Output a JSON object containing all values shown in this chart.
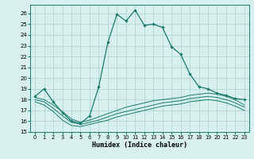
{
  "xlabel": "Humidex (Indice chaleur)",
  "background_color": "#d8f0ed",
  "grid_color": "#b0d8d4",
  "line_color": "#1a7a6e",
  "xlim": [
    -0.5,
    23.5
  ],
  "ylim": [
    15,
    26.8
  ],
  "yticks": [
    15,
    16,
    17,
    18,
    19,
    20,
    21,
    22,
    23,
    24,
    25,
    26
  ],
  "xticks": [
    0,
    1,
    2,
    3,
    4,
    5,
    6,
    7,
    8,
    9,
    10,
    11,
    12,
    13,
    14,
    15,
    16,
    17,
    18,
    19,
    20,
    21,
    22,
    23
  ],
  "main_x": [
    0,
    1,
    2,
    3,
    4,
    5,
    6,
    7,
    8,
    9,
    10,
    11,
    12,
    13,
    14,
    15,
    16,
    17,
    18,
    19,
    20,
    21,
    22,
    23
  ],
  "main_y": [
    18.3,
    19.0,
    17.8,
    16.8,
    16.0,
    15.8,
    16.5,
    19.2,
    23.3,
    25.9,
    25.3,
    26.3,
    24.9,
    25.0,
    24.7,
    22.9,
    22.2,
    20.4,
    19.2,
    19.0,
    18.6,
    18.4,
    18.1,
    18.0
  ],
  "line2_x": [
    0,
    1,
    2,
    3,
    4,
    5,
    6,
    7,
    8,
    9,
    10,
    11,
    12,
    13,
    14,
    15,
    16,
    17,
    18,
    19,
    20,
    21,
    22,
    23
  ],
  "line2_y": [
    18.2,
    18.0,
    17.5,
    16.9,
    16.2,
    15.9,
    16.1,
    16.4,
    16.7,
    17.0,
    17.3,
    17.5,
    17.7,
    17.9,
    18.0,
    18.1,
    18.2,
    18.4,
    18.5,
    18.6,
    18.5,
    18.3,
    18.0,
    17.5
  ],
  "line3_x": [
    0,
    1,
    2,
    3,
    4,
    5,
    6,
    7,
    8,
    9,
    10,
    11,
    12,
    13,
    14,
    15,
    16,
    17,
    18,
    19,
    20,
    21,
    22,
    23
  ],
  "line3_y": [
    18.0,
    17.8,
    17.2,
    16.5,
    15.9,
    15.7,
    15.9,
    16.1,
    16.4,
    16.7,
    16.9,
    17.1,
    17.3,
    17.5,
    17.7,
    17.8,
    17.9,
    18.1,
    18.2,
    18.3,
    18.2,
    18.0,
    17.7,
    17.3
  ],
  "line4_x": [
    0,
    1,
    2,
    3,
    4,
    5,
    6,
    7,
    8,
    9,
    10,
    11,
    12,
    13,
    14,
    15,
    16,
    17,
    18,
    19,
    20,
    21,
    22,
    23
  ],
  "line4_y": [
    17.8,
    17.5,
    16.9,
    16.1,
    15.6,
    15.5,
    15.7,
    15.9,
    16.1,
    16.4,
    16.6,
    16.8,
    17.0,
    17.2,
    17.4,
    17.5,
    17.6,
    17.8,
    17.9,
    18.0,
    17.9,
    17.7,
    17.4,
    17.0
  ]
}
